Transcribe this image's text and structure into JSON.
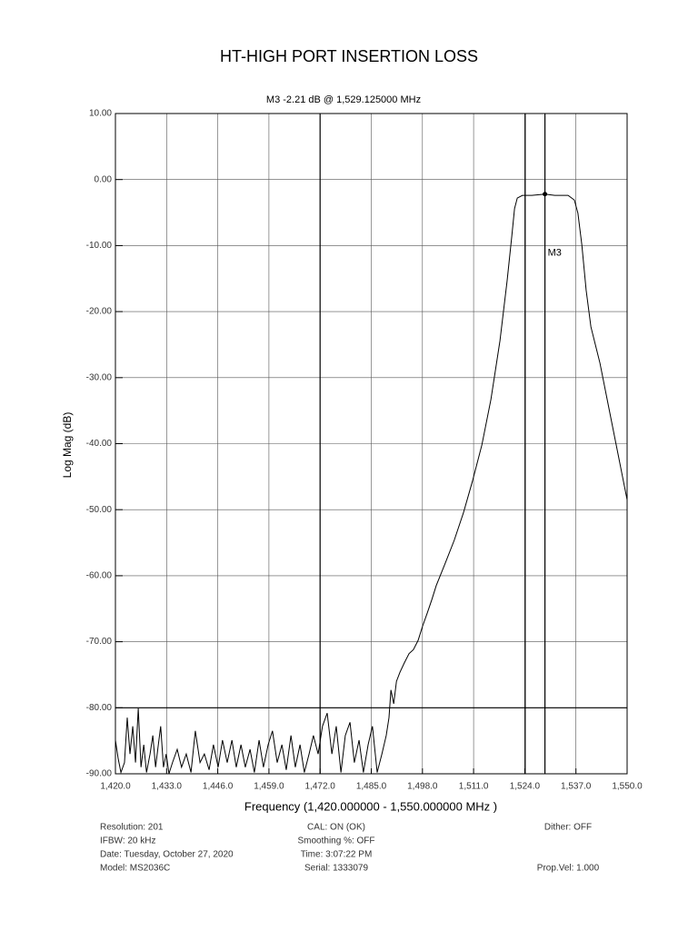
{
  "chart_data": {
    "type": "line",
    "title": "HT-HIGH PORT INSERTION LOSS",
    "subtitle": "M3  -2.21 dB @ 1,529.125000 MHz",
    "x_label": "Frequency (1,420.000000 - 1,550.000000 MHz )",
    "y_label": "Log Mag (dB)",
    "xlim": [
      1420,
      1550
    ],
    "ylim": [
      -90,
      10
    ],
    "xticks": [
      {
        "value": 1420,
        "label": "1,420.0"
      },
      {
        "value": 1433,
        "label": "1,433.0"
      },
      {
        "value": 1446,
        "label": "1,446.0"
      },
      {
        "value": 1459,
        "label": "1,459.0"
      },
      {
        "value": 1472,
        "label": "1,472.0"
      },
      {
        "value": 1485,
        "label": "1,485.0"
      },
      {
        "value": 1498,
        "label": "1,498.0"
      },
      {
        "value": 1511,
        "label": "1,511.0"
      },
      {
        "value": 1524,
        "label": "1,524.0"
      },
      {
        "value": 1537,
        "label": "1,537.0"
      },
      {
        "value": 1550,
        "label": "1,550.0"
      }
    ],
    "yticks": [
      {
        "value": 10,
        "label": "10.00"
      },
      {
        "value": 0,
        "label": "0.00"
      },
      {
        "value": -10,
        "label": "-10.00"
      },
      {
        "value": -20,
        "label": "-20.00"
      },
      {
        "value": -30,
        "label": "-30.00"
      },
      {
        "value": -40,
        "label": "-40.00"
      },
      {
        "value": -50,
        "label": "-50.00"
      },
      {
        "value": -60,
        "label": "-60.00"
      },
      {
        "value": -70,
        "label": "-70.00"
      },
      {
        "value": -80,
        "label": "-80.00"
      },
      {
        "value": -90,
        "label": "-90.00"
      }
    ],
    "grid": true,
    "color": "#000000",
    "x": [
      1420.0,
      1420.7,
      1421.4,
      1422.3,
      1423.0,
      1423.7,
      1424.4,
      1425.1,
      1425.8,
      1426.5,
      1427.2,
      1427.9,
      1428.8,
      1429.5,
      1430.2,
      1430.9,
      1431.5,
      1432.2,
      1432.9,
      1433.6,
      1434.5,
      1435.7,
      1436.8,
      1438.0,
      1439.2,
      1440.3,
      1441.5,
      1442.6,
      1443.8,
      1444.9,
      1446.1,
      1447.2,
      1448.4,
      1449.6,
      1450.7,
      1451.9,
      1453.0,
      1454.2,
      1455.3,
      1456.5,
      1457.6,
      1458.8,
      1459.9,
      1461.1,
      1462.3,
      1463.4,
      1464.6,
      1465.7,
      1466.9,
      1468.0,
      1469.2,
      1470.3,
      1471.5,
      1472.6,
      1473.8,
      1475.0,
      1476.1,
      1477.3,
      1478.4,
      1479.6,
      1480.7,
      1481.9,
      1483.0,
      1484.2,
      1485.3,
      1486.5,
      1487.7,
      1488.8,
      1489.5,
      1490.0,
      1490.7,
      1491.4,
      1492.3,
      1493.4,
      1494.6,
      1495.7,
      1496.9,
      1498.0,
      1499.2,
      1500.4,
      1501.5,
      1503.8,
      1506.1,
      1508.4,
      1510.7,
      1513.1,
      1515.4,
      1517.7,
      1519.5,
      1520.7,
      1521.4,
      1522.1,
      1523.4,
      1525.8,
      1529.125,
      1531.6,
      1535.0,
      1536.6,
      1537.5,
      1538.5,
      1539.6,
      1540.8,
      1543.1,
      1545.4,
      1547.7,
      1550.0
    ],
    "values": [
      -84.9,
      -87.7,
      -89.8,
      -88.3,
      -81.5,
      -87.0,
      -82.8,
      -88.3,
      -80.1,
      -89.0,
      -85.6,
      -89.8,
      -87.0,
      -84.2,
      -89.0,
      -85.6,
      -82.8,
      -89.0,
      -87.0,
      -90.0,
      -88.3,
      -86.3,
      -89.0,
      -87.0,
      -89.8,
      -83.5,
      -88.3,
      -87.0,
      -89.4,
      -85.6,
      -89.0,
      -84.9,
      -88.3,
      -84.9,
      -89.0,
      -85.6,
      -89.0,
      -86.3,
      -89.8,
      -84.9,
      -89.0,
      -85.6,
      -83.5,
      -88.3,
      -85.6,
      -89.4,
      -84.2,
      -89.0,
      -85.6,
      -89.8,
      -87.0,
      -84.2,
      -87.0,
      -82.8,
      -80.8,
      -87.0,
      -82.8,
      -89.8,
      -84.2,
      -82.2,
      -88.3,
      -84.9,
      -89.8,
      -85.6,
      -82.8,
      -89.8,
      -87.0,
      -84.2,
      -81.5,
      -77.3,
      -79.4,
      -76.0,
      -74.6,
      -73.2,
      -71.8,
      -71.2,
      -69.8,
      -67.7,
      -65.7,
      -63.6,
      -61.5,
      -58.1,
      -54.6,
      -50.5,
      -45.7,
      -40.2,
      -33.3,
      -24.4,
      -15.4,
      -8.6,
      -4.4,
      -2.8,
      -2.4,
      -2.4,
      -2.21,
      -2.4,
      -2.4,
      -3.1,
      -5.1,
      -9.9,
      -16.8,
      -22.3,
      -27.8,
      -34.7,
      -41.6,
      -48.5
    ],
    "reference_lines": {
      "x": [
        1472,
        1524.1,
        1529.125
      ],
      "y": [
        -80
      ]
    },
    "marker": {
      "label": "M3",
      "x": 1529.125,
      "y": -2.21
    },
    "footer": {
      "left": [
        "Resolution: 201",
        "IFBW: 20 kHz",
        "Date: Tuesday, October 27, 2020",
        "Model: MS2036C"
      ],
      "center": [
        "CAL: ON (OK)",
        "Smoothing %: OFF",
        "Time: 3:07:22 PM",
        "Serial: 1333079"
      ],
      "right": [
        "Dither: OFF",
        null,
        null,
        "Prop.Vel: 1.000"
      ]
    }
  }
}
